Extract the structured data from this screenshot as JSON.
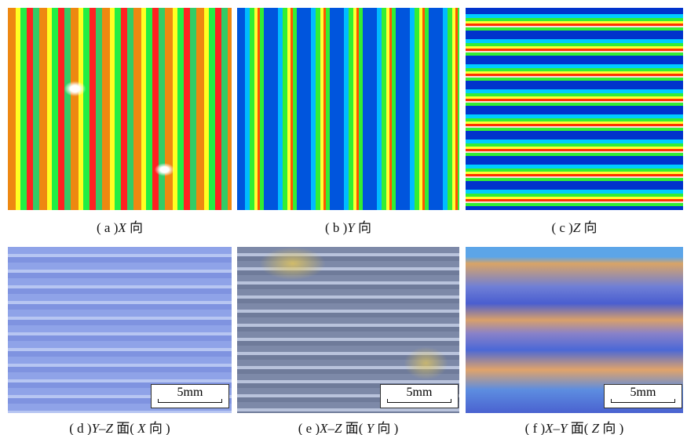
{
  "panels": [
    {
      "caption": [
        {
          "text": "( a )",
          "italic": false
        },
        {
          "text": "X",
          "italic": true
        },
        {
          "text": " 向",
          "italic": false
        }
      ]
    },
    {
      "caption": [
        {
          "text": "( b )",
          "italic": false
        },
        {
          "text": "Y",
          "italic": true
        },
        {
          "text": " 向",
          "italic": false
        }
      ]
    },
    {
      "caption": [
        {
          "text": "( c )",
          "italic": false
        },
        {
          "text": "Z",
          "italic": true
        },
        {
          "text": " 向",
          "italic": false
        }
      ]
    },
    {
      "caption": [
        {
          "text": "( d )",
          "italic": false
        },
        {
          "text": "Y–Z",
          "italic": true
        },
        {
          "text": " 面( ",
          "italic": false
        },
        {
          "text": "X",
          "italic": true
        },
        {
          "text": " 向 )",
          "italic": false
        }
      ],
      "scale_bar": "5mm"
    },
    {
      "caption": [
        {
          "text": "( e )",
          "italic": false
        },
        {
          "text": "X–Z",
          "italic": true
        },
        {
          "text": " 面( ",
          "italic": false
        },
        {
          "text": "Y",
          "italic": true
        },
        {
          "text": " 向 )",
          "italic": false
        }
      ],
      "scale_bar": "5mm"
    },
    {
      "caption": [
        {
          "text": "( f )",
          "italic": false
        },
        {
          "text": "X–Y",
          "italic": true
        },
        {
          "text": " 面( ",
          "italic": false
        },
        {
          "text": "Z",
          "italic": true
        },
        {
          "text": " 向 )",
          "italic": false
        }
      ],
      "scale_bar": "5mm"
    }
  ]
}
